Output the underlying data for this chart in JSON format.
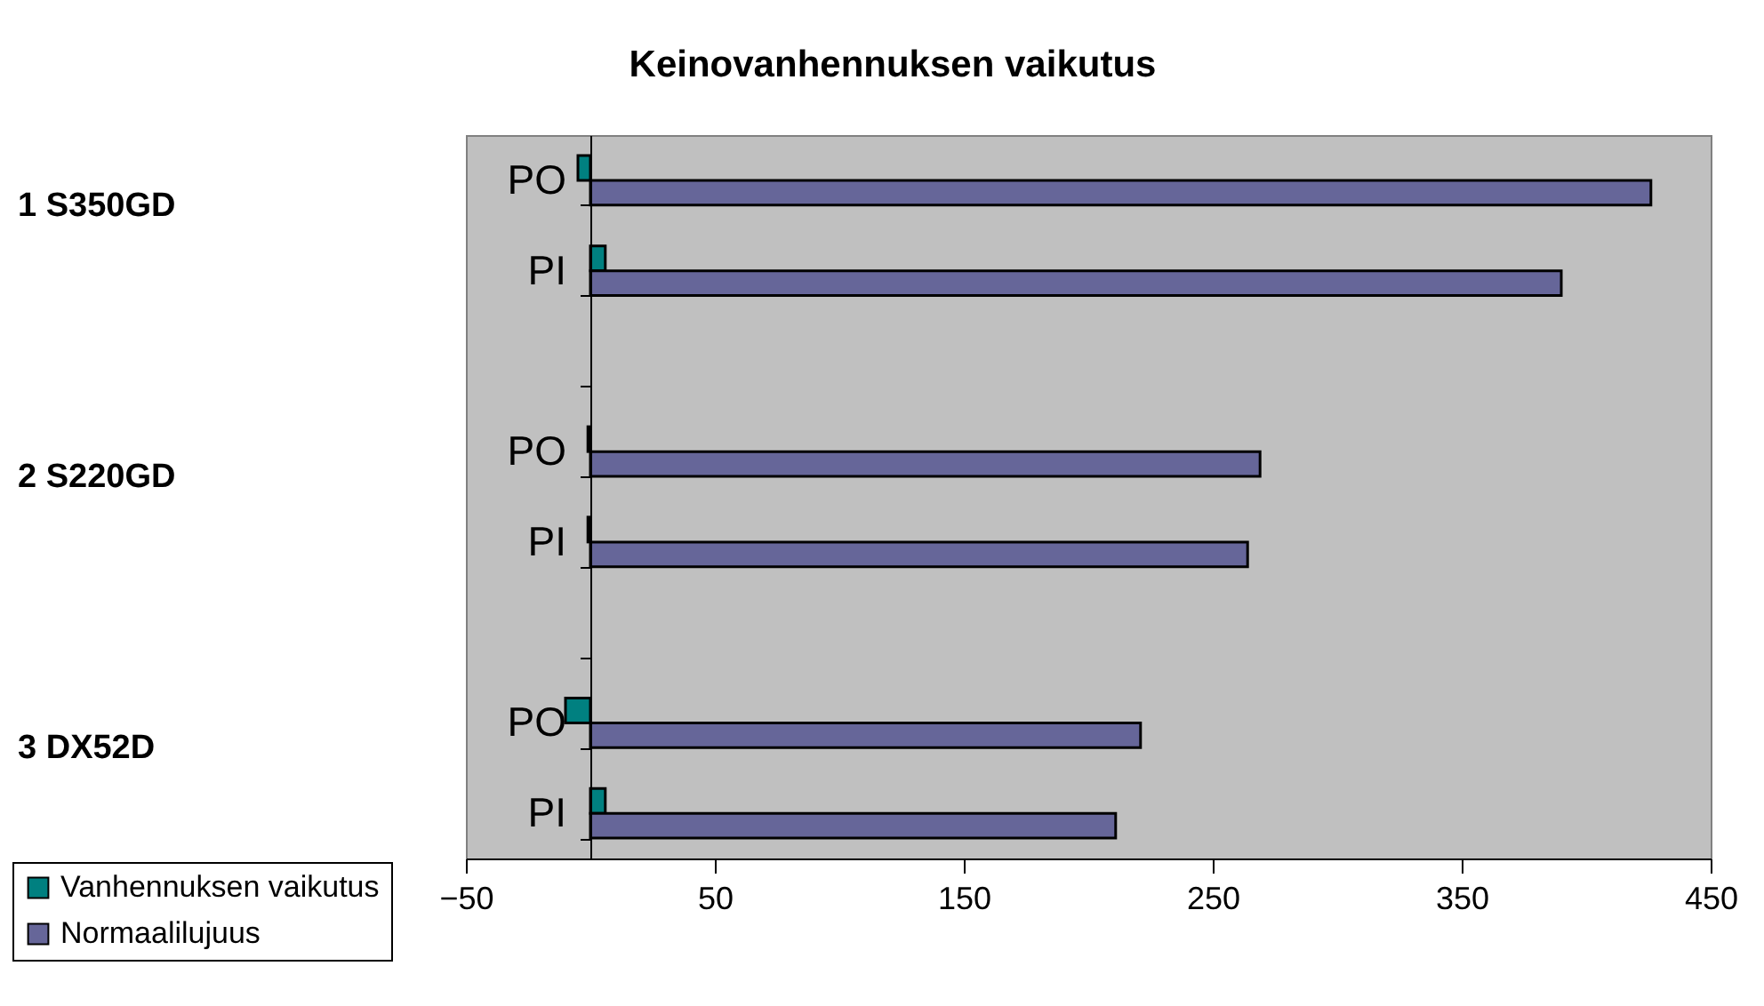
{
  "chart_data": {
    "type": "bar",
    "orientation": "horizontal",
    "title": "Keinovanhennuksen vaikutus",
    "categories": [
      "PO",
      "PI",
      null,
      "PO",
      "PI",
      null,
      "PO",
      "PI"
    ],
    "series": [
      {
        "name": "Vanhennuksen vaikutus",
        "color": "#008080",
        "values": [
          -5,
          6,
          null,
          -1,
          -1,
          null,
          -10,
          6
        ]
      },
      {
        "name": "Normaalilujuus",
        "color": "#666699",
        "values": [
          426,
          390,
          null,
          269,
          264,
          null,
          221,
          211
        ]
      }
    ],
    "annotations": [
      "1 S350GD",
      "2 S220GD",
      "3 DX52D"
    ],
    "xlim": [
      -50,
      450
    ],
    "xticks": [
      -50,
      50,
      150,
      250,
      350,
      450
    ],
    "grid": false,
    "legend": "bottom left"
  }
}
